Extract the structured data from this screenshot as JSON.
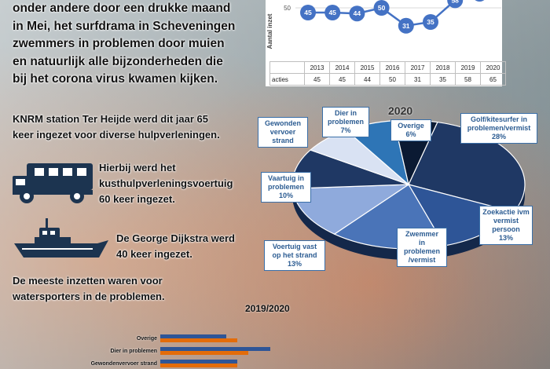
{
  "intro": {
    "lines": [
      "onder andere door een drukke maand",
      "in Mei, het surfdrama in Scheveningen",
      "zwemmers in problemen door muien",
      "en natuurlijk alle bijzonderheden die",
      "bij het corona virus kwamen kijken."
    ]
  },
  "para1": [
    "KNRM station Ter Heijde werd dit jaar 65",
    "keer ingezet voor diverse hulpverleningen."
  ],
  "para2": [
    "Hierbij werd het",
    "kusthulpverleningsvoertuig",
    "60 keer ingezet."
  ],
  "para3": [
    "De George Dijkstra werd",
    "40 keer ingezet."
  ],
  "para4": [
    "De meeste inzetten waren voor",
    "watersporters in de problemen."
  ],
  "icons": {
    "vehicle": "rescue-truck-icon",
    "boat": "rescue-boat-icon"
  },
  "chart_data": [
    {
      "type": "line",
      "ylabel": "Aantal inzet",
      "x": [
        "2013",
        "2014",
        "2015",
        "2016",
        "2017",
        "2018",
        "2019",
        "2020"
      ],
      "series": [
        {
          "name": "acties",
          "values": [
            45,
            45,
            44,
            50,
            31,
            35,
            58,
            65
          ]
        }
      ],
      "table_row_label": "acties",
      "ytick_visible": "50",
      "color": "#4472c4"
    },
    {
      "type": "pie",
      "title": "2020",
      "slices": [
        {
          "label": "Golf/kitesurfer in problemen/vermist",
          "value": 28
        },
        {
          "label": "Zoekactie ivm vermist persoon",
          "value": 13
        },
        {
          "label": "Zwemmer in problemen /vermist",
          "value": 16
        },
        {
          "label": "Voertuig vast op het strand",
          "value": 13
        },
        {
          "label": "Vaartuig in problemen",
          "value": 10
        },
        {
          "label": "Gewonden vervoer strand",
          "value": 7
        },
        {
          "label": "Dier in problemen",
          "value": 7
        },
        {
          "label": "Overige",
          "value": 6
        }
      ],
      "callouts": {
        "golf": [
          "Golf/kitesurfer in",
          "problemen/vermist",
          "28%"
        ],
        "zoek": [
          "Zoekactie ivm",
          "vermist",
          "persoon",
          "13%"
        ],
        "zwemmer": [
          "Zwemmer",
          "in",
          "problemen",
          "/vermist"
        ],
        "voertuig": [
          "Voertuig vast",
          "op het strand",
          "13%"
        ],
        "vaartuig": [
          "Vaartuig in",
          "problemen",
          "10%"
        ],
        "gewonden": [
          "Gewonden",
          "vervoer",
          "strand"
        ],
        "dier": [
          "Dier in",
          "problemen",
          "7%"
        ],
        "overige": [
          "Overige",
          "6%"
        ]
      },
      "colors": [
        "#1f3864",
        "#2e5597",
        "#4a74b8",
        "#8faadc",
        "#1f3864",
        "#d9e2f3",
        "#2e75b6",
        "#0b1a33"
      ]
    },
    {
      "type": "bar",
      "title": "2019/2020",
      "categories": [
        "Overige",
        "Dier in problemen",
        "Gewondenvervoer strand"
      ],
      "series": [
        {
          "values": [
            6,
            10,
            7
          ]
        },
        {
          "values": [
            7,
            8,
            7
          ]
        }
      ],
      "colors": [
        "#2e5597",
        "#e36c0a"
      ]
    }
  ]
}
